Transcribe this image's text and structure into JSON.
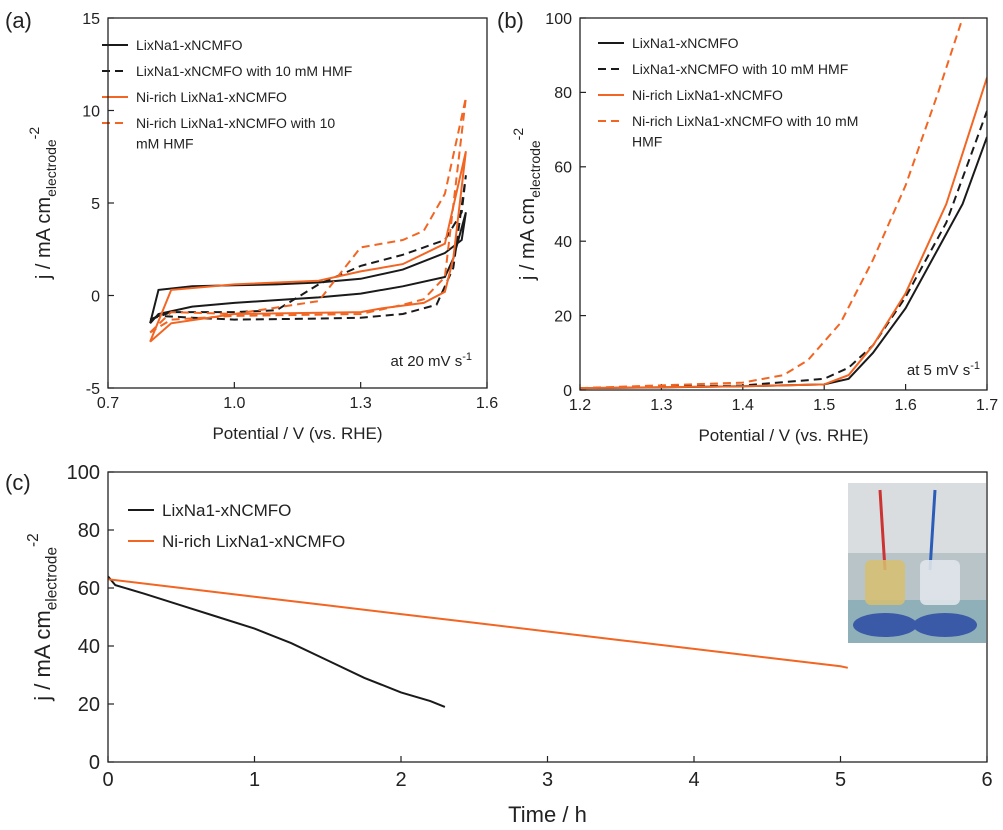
{
  "chart_data": [
    {
      "type": "line",
      "panel_label": "(a)",
      "xlabel": "Potential / V (vs. RHE)",
      "ylabel": {
        "text": "j / mA cm",
        "sub": "electrode",
        "sup": "-2"
      },
      "annotation": {
        "text": "at 20 mV s",
        "sup": "-1"
      },
      "xlim": [
        0.7,
        1.6
      ],
      "ylim": [
        -5,
        15
      ],
      "xticks": [
        0.7,
        {
          "value": 1,
          "label": "1.0"
        },
        1.3,
        1.6
      ],
      "yticks": [
        -5,
        0,
        5,
        10,
        15
      ],
      "series": [
        {
          "name": "LixNa1-xNCMFO",
          "color": "#1a1a1a",
          "dash": false,
          "x": [
            0.8,
            0.82,
            0.9,
            1.0,
            1.1,
            1.2,
            1.3,
            1.4,
            1.5,
            1.54,
            1.55,
            1.52,
            1.5,
            1.4,
            1.3,
            1.2,
            1.1,
            1.0,
            0.9,
            0.82,
            0.8
          ],
          "values": [
            -1.5,
            0.3,
            0.5,
            0.55,
            0.6,
            0.7,
            0.9,
            1.4,
            2.3,
            3,
            4.5,
            2,
            1,
            0.5,
            0.1,
            -0.1,
            -0.25,
            -0.4,
            -0.6,
            -1,
            -1.5
          ]
        },
        {
          "name": "LixNa1-xNCMFO with 10 mM HMF",
          "color": "#1a1a1a",
          "dash": true,
          "x": [
            0.8,
            0.85,
            1.0,
            1.1,
            1.2,
            1.3,
            1.4,
            1.5,
            1.54,
            1.55,
            1.52,
            1.48,
            1.4,
            1.3,
            1.2,
            1.0,
            0.9,
            0.82,
            0.8
          ],
          "values": [
            -1.3,
            -0.9,
            -0.9,
            -0.8,
            0.6,
            1.6,
            2.2,
            3,
            4.5,
            6.5,
            1.5,
            -0.5,
            -1,
            -1.2,
            -1.25,
            -1.3,
            -1.2,
            -1.1,
            -1.3
          ]
        },
        {
          "name": "Ni-rich LixNa1-xNCMFO",
          "color": "#f26522",
          "dash": false,
          "x": [
            0.8,
            0.85,
            1.0,
            1.2,
            1.3,
            1.4,
            1.5,
            1.55,
            1.52,
            1.5,
            1.45,
            1.35,
            1.3,
            1.0,
            0.85,
            0.8
          ],
          "values": [
            -2.5,
            0.3,
            0.6,
            0.8,
            1.3,
            1.7,
            2.8,
            7.8,
            2,
            0.2,
            -0.4,
            -0.7,
            -0.9,
            -1,
            -1.5,
            -2.5
          ]
        },
        {
          "name": "Ni-rich LixNa1-xNCMFO with 10 mM HMF",
          "color": "#f26522",
          "dash": true,
          "x": [
            0.8,
            0.85,
            1.0,
            1.2,
            1.3,
            1.4,
            1.45,
            1.5,
            1.55,
            1.5,
            1.45,
            1.4,
            1.3,
            1.0,
            0.85,
            0.8
          ],
          "values": [
            -2,
            -0.9,
            -1,
            -0.3,
            2.6,
            3,
            3.5,
            5.5,
            10.7,
            1,
            -0.2,
            -0.5,
            -1,
            -1.1,
            -1.3,
            -2
          ]
        }
      ]
    },
    {
      "type": "line",
      "panel_label": "(b)",
      "xlabel": "Potential / V (vs. RHE)",
      "ylabel": {
        "text": "j / mA cm",
        "sub": "electrode",
        "sup": "-2"
      },
      "annotation": {
        "text": "at 5 mV s",
        "sup": "-1"
      },
      "xlim": [
        1.2,
        1.7
      ],
      "ylim": [
        0,
        100
      ],
      "xticks": [
        1.2,
        1.3,
        1.4,
        1.5,
        1.6,
        1.7
      ],
      "yticks": [
        0,
        20,
        40,
        60,
        80,
        100
      ],
      "series": [
        {
          "name": "LixNa1-xNCMFO",
          "color": "#1a1a1a",
          "dash": false,
          "x": [
            1.2,
            1.3,
            1.4,
            1.5,
            1.53,
            1.56,
            1.6,
            1.64,
            1.67,
            1.7
          ],
          "values": [
            0.5,
            0.7,
            1,
            1.5,
            3,
            10,
            22,
            38,
            50,
            68
          ]
        },
        {
          "name": "LixNa1-xNCMFO with 10 mM HMF",
          "color": "#1a1a1a",
          "dash": true,
          "x": [
            1.2,
            1.4,
            1.5,
            1.53,
            1.56,
            1.6,
            1.65,
            1.7
          ],
          "values": [
            0.5,
            1.2,
            3,
            6,
            12,
            25,
            45,
            75
          ]
        },
        {
          "name": "Ni-rich LixNa1-xNCMFO",
          "color": "#f26522",
          "dash": false,
          "x": [
            1.2,
            1.4,
            1.5,
            1.53,
            1.56,
            1.6,
            1.65,
            1.7
          ],
          "values": [
            0.5,
            1,
            1.5,
            4,
            12,
            26,
            50,
            84
          ]
        },
        {
          "name": "Ni-rich LixNa1-xNCMFO with 10 mM HMF",
          "color": "#f26522",
          "dash": true,
          "x": [
            1.2,
            1.4,
            1.45,
            1.48,
            1.52,
            1.56,
            1.6,
            1.64,
            1.67
          ],
          "values": [
            0.5,
            2,
            4,
            8,
            18,
            35,
            55,
            80,
            100
          ]
        }
      ]
    },
    {
      "type": "line",
      "panel_label": "(c)",
      "xlabel": "Time / h",
      "ylabel": {
        "text": "j / mA cm",
        "sub": "electrode",
        "sup": "-2"
      },
      "xlim": [
        0,
        6
      ],
      "ylim": [
        0,
        100
      ],
      "xticks": [
        0,
        1,
        2,
        3,
        4,
        5,
        6
      ],
      "yticks": [
        0,
        20,
        40,
        60,
        80,
        100
      ],
      "series": [
        {
          "name": "LixNa1-xNCMFO",
          "color": "#1a1a1a",
          "dash": false,
          "x": [
            0,
            0.05,
            0.25,
            0.5,
            0.75,
            1,
            1.25,
            1.5,
            1.75,
            2,
            2.2,
            2.3
          ],
          "values": [
            64,
            61,
            58,
            54,
            50,
            46,
            41,
            35,
            29,
            24,
            21,
            19
          ]
        },
        {
          "name": "Ni-rich LixNa1-xNCMFO",
          "color": "#f26522",
          "dash": false,
          "x": [
            0,
            0.5,
            1,
            1.5,
            2,
            2.5,
            3,
            3.5,
            4,
            4.5,
            5,
            5.05
          ],
          "values": [
            63,
            60,
            57,
            54,
            51,
            48,
            45,
            42,
            39,
            36,
            33,
            32.5
          ]
        }
      ]
    }
  ]
}
